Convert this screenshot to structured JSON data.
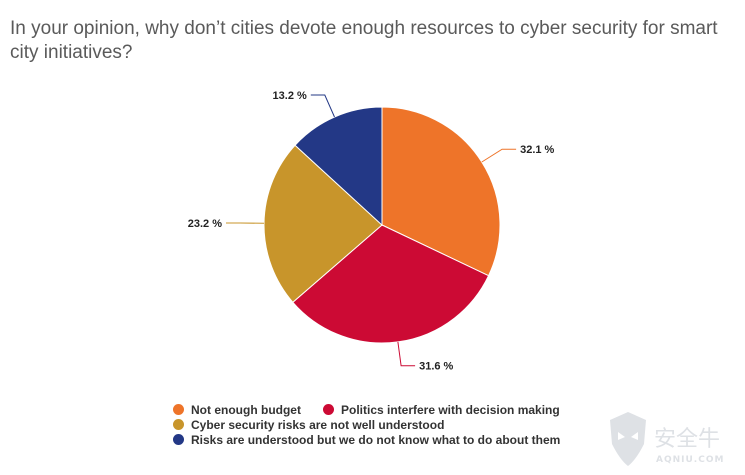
{
  "chart_data": {
    "type": "pie",
    "title": "In your opinion, why don’t cities devote enough resources to cyber security for smart city initiatives?",
    "slices": [
      {
        "name": "Not enough budget",
        "value": 32.1,
        "label": "32.1 %",
        "color": "#ee7429"
      },
      {
        "name": "Politics interfere with decision making",
        "value": 31.6,
        "label": "31.6 %",
        "color": "#cc0a34"
      },
      {
        "name": "Cyber security risks are not well understood",
        "value": 23.2,
        "label": "23.2 %",
        "color": "#c8952b"
      },
      {
        "name": "Risks are understood but we do not know what to do about them",
        "value": 13.2,
        "label": "13.2 %",
        "color": "#233886"
      }
    ],
    "start_angle_deg": 0,
    "direction": "clockwise",
    "legend_position": "bottom"
  },
  "watermark": {
    "text": "安全牛",
    "subtext": "AQNIU.COM"
  }
}
